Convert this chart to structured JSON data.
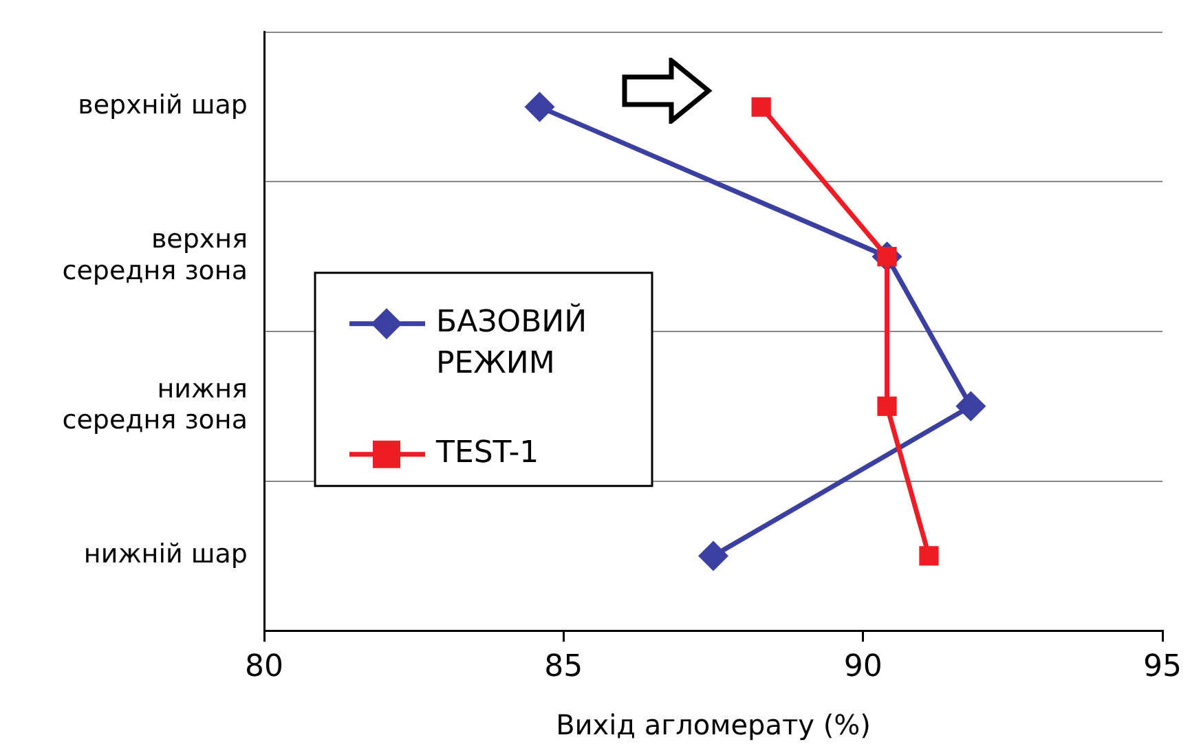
{
  "chart_data": {
    "type": "line",
    "orientation": "horizontal",
    "xlabel": "Вихід агломерату (%)",
    "categories": [
      "верхній шар",
      "верхня середня зона",
      "нижня середня зона",
      "нижній шар"
    ],
    "series": [
      {
        "name": "БАЗОВИЙ РЕЖИМ",
        "color": "#3a3fa0",
        "marker": "diamond",
        "values": [
          84.6,
          90.4,
          91.8,
          87.5
        ]
      },
      {
        "name": "TEST-1",
        "color": "#ee1c24",
        "marker": "square",
        "values": [
          88.3,
          90.4,
          90.4,
          91.1
        ]
      }
    ],
    "xlim": [
      80,
      95
    ],
    "xticks": [
      80,
      85,
      90,
      95
    ],
    "grid": "y",
    "legend": "left"
  }
}
